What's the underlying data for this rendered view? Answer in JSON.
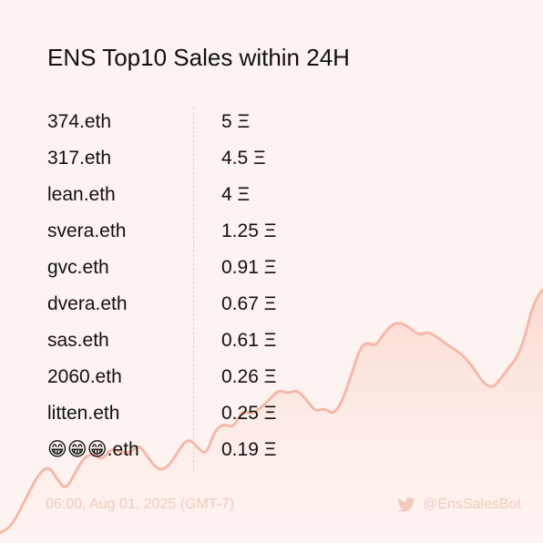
{
  "card": {
    "title": "ENS Top10 Sales within 24H"
  },
  "sales": [
    {
      "name": "374.eth",
      "price": "5 Ξ"
    },
    {
      "name": "317.eth",
      "price": "4.5 Ξ"
    },
    {
      "name": "lean.eth",
      "price": "4 Ξ"
    },
    {
      "name": "svera.eth",
      "price": "1.25 Ξ"
    },
    {
      "name": "gvc.eth",
      "price": "0.91 Ξ"
    },
    {
      "name": "dvera.eth",
      "price": "0.67 Ξ"
    },
    {
      "name": "sas.eth",
      "price": "0.61 Ξ"
    },
    {
      "name": "2060.eth",
      "price": "0.26 Ξ"
    },
    {
      "name": "litten.eth",
      "price": "0.25 Ξ"
    },
    {
      "name": "😁😁😁.eth",
      "price": "0.19 Ξ"
    }
  ],
  "footer": {
    "timestamp": "06:00, Aug 01, 2025 (GMT-7)",
    "handle": "@EnsSalesBot",
    "icon": "twitter-icon"
  },
  "colors": {
    "background": "#fdf3f0",
    "chart_line": "#f6b8aa",
    "chart_fill": "#fbdcd4",
    "footer_text": "#f4c9bc",
    "text": "#111111"
  }
}
